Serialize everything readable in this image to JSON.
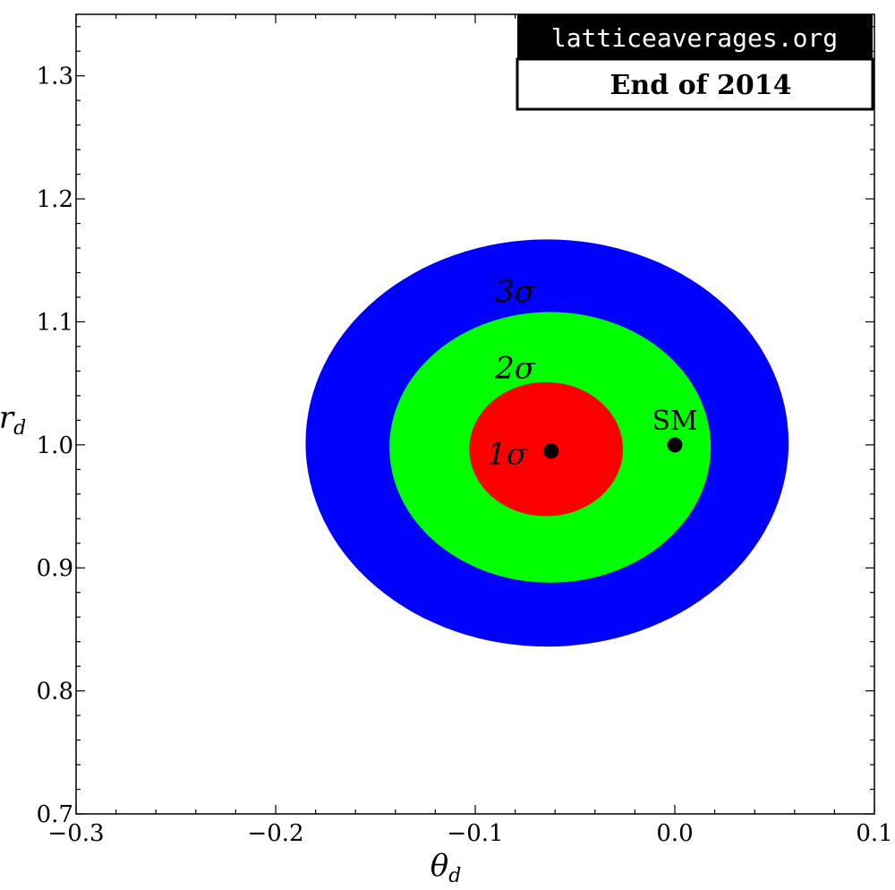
{
  "chart_data": {
    "type": "contour",
    "xlabel": "θ",
    "xlabel_sub": "d",
    "ylabel": "r",
    "ylabel_sub": "d",
    "xlim": [
      -0.3,
      0.1
    ],
    "ylim": [
      0.7,
      1.35
    ],
    "x_ticks": [
      -0.3,
      -0.2,
      -0.1,
      0.0,
      0.1
    ],
    "x_tick_labels": [
      "−0.3",
      "−0.2",
      "−0.1",
      "0.0",
      "0.1"
    ],
    "y_ticks": [
      0.7,
      0.8,
      0.9,
      1.0,
      1.1,
      1.2,
      1.3
    ],
    "y_tick_labels": [
      "0.7",
      "0.8",
      "0.9",
      "1.0",
      "1.1",
      "1.2",
      "1.3"
    ],
    "regions": [
      {
        "name": "3σ",
        "label": "3σ",
        "label_at": [
          -0.08,
          1.125
        ],
        "color": "#0000ff",
        "x_range": [
          -0.185,
          0.057
        ],
        "y_range": [
          0.836,
          1.167
        ]
      },
      {
        "name": "2σ",
        "label": "2σ",
        "label_at": [
          -0.08,
          1.063
        ],
        "color": "#00ff00",
        "x_range": [
          -0.143,
          0.018
        ],
        "y_range": [
          0.888,
          1.108
        ]
      },
      {
        "name": "1σ",
        "label": "1σ",
        "label_at": [
          -0.084,
          0.993
        ],
        "color": "#ff0000",
        "x_range": [
          -0.103,
          -0.026
        ],
        "y_range": [
          0.942,
          1.051
        ]
      }
    ],
    "points": [
      {
        "name": "best-fit",
        "label": "",
        "x": -0.062,
        "y": 0.995
      },
      {
        "name": "SM",
        "label": "SM",
        "x": 0.0,
        "y": 1.0
      }
    ],
    "badge": {
      "top": "latticeaverages.org",
      "bottom": "End of 2014"
    },
    "colors": {
      "background": "#ffffff",
      "axis": "#000000",
      "points": "#000000"
    }
  }
}
